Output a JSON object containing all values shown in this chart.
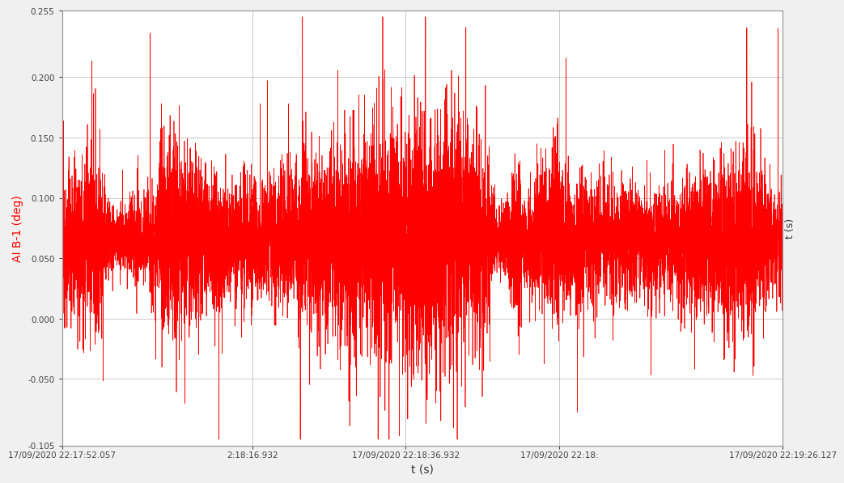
{
  "ylabel": "AI B-1 (deg)",
  "xlabel": "t (s)",
  "ylabel_color": "red",
  "line_color": "#FF0000",
  "background_color": "#F0F0F0",
  "plot_bg_color": "#FFFFFF",
  "ylim": [
    -0.105,
    0.255
  ],
  "yticks": [
    -0.105,
    -0.05,
    0.0,
    0.05,
    0.1,
    0.15,
    0.2,
    0.255
  ],
  "ytick_labels": [
    "-0.105",
    "-0.050",
    "0.000",
    "0.050",
    "0.100",
    "0.150",
    "0.200",
    "0.255"
  ],
  "duration_seconds": 94.07,
  "sample_rate": 100,
  "baseline": 0.065,
  "tick_seconds": [
    0,
    24.875,
    44.875,
    64.875,
    94.07
  ],
  "x_tick_labels": [
    "17/09/2020 22:17:52.057",
    "2:18:16.932",
    "17/09/2020 22:18:36.932",
    "17/09/2020 22:18:",
    "17/09/2020 22:19:26.127"
  ],
  "grid_color": "#BBBBBB",
  "tick_color": "#444444",
  "right_ylabel": "t (s)",
  "linewidth": 0.5
}
